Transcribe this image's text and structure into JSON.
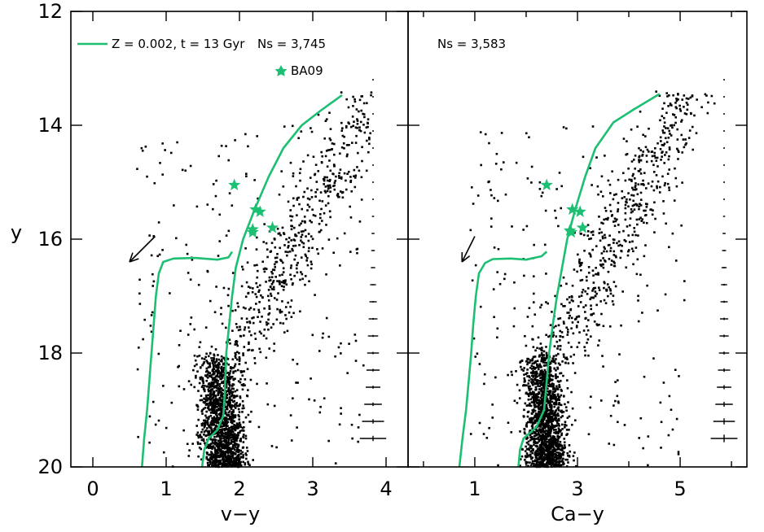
{
  "chart_data": [
    {
      "type": "scatter",
      "panel": "left",
      "xlabel": "v−y",
      "ylabel": "y",
      "xlim": [
        -0.3,
        4.3
      ],
      "ylim": [
        20,
        12
      ],
      "x_ticks": [
        0,
        1,
        2,
        3,
        4
      ],
      "x_tick_labels": [
        "0",
        "1",
        "2",
        "3",
        "4"
      ],
      "y_ticks": [
        12,
        14,
        16,
        18,
        20
      ],
      "y_tick_labels": [
        "12",
        "14",
        "16",
        "18",
        "20"
      ],
      "legend_label": "Z = 0.002, t = 13 Gyr",
      "stars_label": "BA09",
      "count_label": "Ns = 3,745",
      "isochrone_color": "#1dbf73",
      "point_color": "#000000",
      "isochrone": [
        [
          0.67,
          20.0
        ],
        [
          0.7,
          19.5
        ],
        [
          0.74,
          19.0
        ],
        [
          0.77,
          18.5
        ],
        [
          0.8,
          18.0
        ],
        [
          0.83,
          17.5
        ],
        [
          0.86,
          17.0
        ],
        [
          0.9,
          16.6
        ],
        [
          0.96,
          16.4
        ],
        [
          1.1,
          16.34
        ],
        [
          1.4,
          16.33
        ],
        [
          1.7,
          16.36
        ],
        [
          1.85,
          16.32
        ],
        [
          1.9,
          16.22
        ],
        [
          null,
          null
        ],
        [
          1.49,
          20.0
        ],
        [
          1.52,
          19.7
        ],
        [
          1.58,
          19.5
        ],
        [
          1.7,
          19.35
        ],
        [
          1.78,
          19.1
        ],
        [
          1.8,
          18.7
        ],
        [
          1.82,
          18.0
        ],
        [
          1.86,
          17.5
        ],
        [
          1.9,
          17.0
        ],
        [
          1.95,
          16.5
        ],
        [
          2.05,
          16.0
        ],
        [
          2.2,
          15.5
        ],
        [
          2.4,
          14.9
        ],
        [
          2.6,
          14.4
        ],
        [
          2.85,
          14.0
        ],
        [
          3.1,
          13.75
        ],
        [
          3.4,
          13.47
        ]
      ],
      "stars": [
        [
          1.93,
          15.05
        ],
        [
          2.22,
          15.48
        ],
        [
          2.28,
          15.52
        ],
        [
          2.18,
          15.83
        ],
        [
          2.18,
          15.88
        ],
        [
          2.45,
          15.8
        ]
      ],
      "error_bars": [
        {
          "y": 13.2,
          "xerr": 0.01
        },
        {
          "y": 13.5,
          "xerr": 0.01
        },
        {
          "y": 13.8,
          "xerr": 0.01
        },
        {
          "y": 14.1,
          "xerr": 0.01
        },
        {
          "y": 14.4,
          "xerr": 0.01
        },
        {
          "y": 14.7,
          "xerr": 0.01
        },
        {
          "y": 15.0,
          "xerr": 0.01
        },
        {
          "y": 15.3,
          "xerr": 0.01
        },
        {
          "y": 15.6,
          "xerr": 0.015
        },
        {
          "y": 15.9,
          "xerr": 0.02
        },
        {
          "y": 16.2,
          "xerr": 0.025
        },
        {
          "y": 16.5,
          "xerr": 0.03
        },
        {
          "y": 16.8,
          "xerr": 0.04
        },
        {
          "y": 17.1,
          "xerr": 0.05
        },
        {
          "y": 17.4,
          "xerr": 0.06
        },
        {
          "y": 17.7,
          "xerr": 0.07
        },
        {
          "y": 18.0,
          "xerr": 0.08
        },
        {
          "y": 18.3,
          "xerr": 0.09
        },
        {
          "y": 18.6,
          "xerr": 0.1
        },
        {
          "y": 18.9,
          "xerr": 0.12
        },
        {
          "y": 19.2,
          "xerr": 0.15
        },
        {
          "y": 19.5,
          "xerr": 0.18
        }
      ],
      "arrow": {
        "from": [
          0.85,
          15.95
        ],
        "to": [
          0.5,
          16.4
        ]
      },
      "cloud": {
        "seed": 11,
        "x_offset": 0.0,
        "x_spread_scale": 1.0
      }
    },
    {
      "type": "scatter",
      "panel": "right",
      "xlabel": "Ca−y",
      "ylabel": "",
      "xlim": [
        -0.3,
        6.3
      ],
      "ylim": [
        20,
        12
      ],
      "x_ticks": [
        1,
        3,
        5
      ],
      "x_tick_labels": [
        "1",
        "3",
        "5"
      ],
      "x_minor_ticks": [
        0,
        2,
        4,
        6
      ],
      "y_ticks": [
        12,
        14,
        16,
        18,
        20
      ],
      "y_tick_labels": [
        "",
        "",
        "",
        "",
        ""
      ],
      "count_label": "Ns = 3,583",
      "isochrone_color": "#1dbf73",
      "point_color": "#000000",
      "isochrone": [
        [
          0.7,
          20.0
        ],
        [
          0.76,
          19.5
        ],
        [
          0.83,
          19.0
        ],
        [
          0.88,
          18.5
        ],
        [
          0.93,
          18.0
        ],
        [
          0.97,
          17.5
        ],
        [
          1.02,
          17.0
        ],
        [
          1.08,
          16.6
        ],
        [
          1.2,
          16.42
        ],
        [
          1.35,
          16.35
        ],
        [
          1.7,
          16.34
        ],
        [
          2.0,
          16.36
        ],
        [
          2.3,
          16.3
        ],
        [
          2.4,
          16.22
        ],
        [
          null,
          null
        ],
        [
          1.85,
          20.0
        ],
        [
          1.88,
          19.7
        ],
        [
          1.95,
          19.5
        ],
        [
          2.2,
          19.3
        ],
        [
          2.35,
          19.0
        ],
        [
          2.4,
          18.5
        ],
        [
          2.45,
          18.0
        ],
        [
          2.52,
          17.5
        ],
        [
          2.6,
          17.0
        ],
        [
          2.7,
          16.5
        ],
        [
          2.8,
          16.0
        ],
        [
          2.95,
          15.5
        ],
        [
          3.15,
          14.9
        ],
        [
          3.35,
          14.4
        ],
        [
          3.7,
          13.95
        ],
        [
          4.1,
          13.72
        ],
        [
          4.6,
          13.45
        ]
      ],
      "stars": [
        [
          2.4,
          15.05
        ],
        [
          2.9,
          15.48
        ],
        [
          3.05,
          15.52
        ],
        [
          2.85,
          15.85
        ],
        [
          2.88,
          15.88
        ],
        [
          3.1,
          15.8
        ]
      ],
      "error_bars": [
        {
          "y": 13.2,
          "xerr": 0.01
        },
        {
          "y": 13.5,
          "xerr": 0.01
        },
        {
          "y": 13.8,
          "xerr": 0.01
        },
        {
          "y": 14.1,
          "xerr": 0.01
        },
        {
          "y": 14.4,
          "xerr": 0.01
        },
        {
          "y": 14.7,
          "xerr": 0.01
        },
        {
          "y": 15.0,
          "xerr": 0.01
        },
        {
          "y": 15.3,
          "xerr": 0.01
        },
        {
          "y": 15.6,
          "xerr": 0.02
        },
        {
          "y": 15.9,
          "xerr": 0.03
        },
        {
          "y": 16.2,
          "xerr": 0.04
        },
        {
          "y": 16.5,
          "xerr": 0.05
        },
        {
          "y": 16.8,
          "xerr": 0.06
        },
        {
          "y": 17.1,
          "xerr": 0.07
        },
        {
          "y": 17.4,
          "xerr": 0.08
        },
        {
          "y": 17.7,
          "xerr": 0.09
        },
        {
          "y": 18.0,
          "xerr": 0.1
        },
        {
          "y": 18.3,
          "xerr": 0.12
        },
        {
          "y": 18.6,
          "xerr": 0.14
        },
        {
          "y": 18.9,
          "xerr": 0.17
        },
        {
          "y": 19.2,
          "xerr": 0.21
        },
        {
          "y": 19.5,
          "xerr": 0.26
        }
      ],
      "arrow": {
        "from": [
          1.0,
          15.95
        ],
        "to": [
          0.75,
          16.4
        ]
      },
      "cloud": {
        "seed": 29,
        "x_offset": 0.6,
        "x_spread_scale": 1.35
      }
    }
  ]
}
